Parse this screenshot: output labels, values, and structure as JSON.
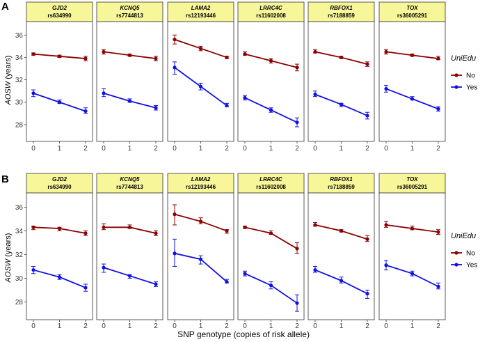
{
  "chart_data": {
    "type": "line",
    "xlabel": "SNP genotype (copies of risk allele)",
    "x": [
      0,
      1,
      2
    ],
    "x_ticks": [
      "0",
      "1",
      "2"
    ],
    "y_ticks": [
      "28",
      "30",
      "32",
      "34",
      "36"
    ],
    "legend": {
      "title": "UniEdu",
      "entries": [
        {
          "name": "No",
          "color": "#8b0000"
        },
        {
          "name": "Yes",
          "color": "#1010e6"
        }
      ]
    },
    "panels": [
      {
        "letter": "A",
        "ylabel_italic": "AOSW",
        "ylabel_rest": " (years)",
        "ylim": [
          26.5,
          37.2
        ],
        "facets": [
          {
            "gene": "GJD2",
            "snp": "rs634990",
            "no": {
              "values": [
                34.3,
                34.1,
                33.9
              ],
              "lo": [
                34.2,
                34.0,
                33.7
              ],
              "hi": [
                34.4,
                34.2,
                34.1
              ]
            },
            "yes": {
              "values": [
                30.8,
                30.0,
                29.2
              ],
              "lo": [
                30.5,
                29.9,
                29.0
              ],
              "hi": [
                31.1,
                30.2,
                29.5
              ]
            }
          },
          {
            "gene": "KCNQ5",
            "snp": "rs7744813",
            "no": {
              "values": [
                34.5,
                34.2,
                33.9
              ],
              "lo": [
                34.3,
                34.1,
                33.7
              ],
              "hi": [
                34.7,
                34.3,
                34.1
              ]
            },
            "yes": {
              "values": [
                30.8,
                30.1,
                29.5
              ],
              "lo": [
                30.5,
                30.0,
                29.3
              ],
              "hi": [
                31.2,
                30.3,
                29.7
              ]
            }
          },
          {
            "gene": "LAMA2",
            "snp": "rs12193446",
            "no": {
              "values": [
                35.6,
                34.8,
                34.0
              ],
              "lo": [
                35.2,
                34.6,
                33.9
              ],
              "hi": [
                36.0,
                35.0,
                34.1
              ]
            },
            "yes": {
              "values": [
                33.1,
                31.4,
                29.7
              ],
              "lo": [
                32.5,
                31.1,
                29.6
              ],
              "hi": [
                33.6,
                31.7,
                29.9
              ]
            }
          },
          {
            "gene": "LRRC4C",
            "snp": "rs11602008",
            "no": {
              "values": [
                34.3,
                33.7,
                33.1
              ],
              "lo": [
                34.2,
                33.5,
                32.8
              ],
              "hi": [
                34.5,
                33.9,
                33.4
              ]
            },
            "yes": {
              "values": [
                30.4,
                29.3,
                28.2
              ],
              "lo": [
                30.2,
                29.1,
                27.8
              ],
              "hi": [
                30.6,
                29.5,
                28.6
              ]
            }
          },
          {
            "gene": "RBFOX1",
            "snp": "rs7188859",
            "no": {
              "values": [
                34.5,
                34.0,
                33.4
              ],
              "lo": [
                34.4,
                33.9,
                33.2
              ],
              "hi": [
                34.7,
                34.1,
                33.6
              ]
            },
            "yes": {
              "values": [
                30.7,
                29.8,
                28.8
              ],
              "lo": [
                30.5,
                29.6,
                28.5
              ],
              "hi": [
                31.0,
                29.9,
                29.1
              ]
            }
          },
          {
            "gene": "TOX",
            "snp": "rs36005291",
            "no": {
              "values": [
                34.5,
                34.2,
                33.9
              ],
              "lo": [
                34.3,
                34.1,
                33.8
              ],
              "hi": [
                34.7,
                34.3,
                34.1
              ]
            },
            "yes": {
              "values": [
                31.2,
                30.3,
                29.4
              ],
              "lo": [
                30.9,
                30.2,
                29.2
              ],
              "hi": [
                31.5,
                30.5,
                29.6
              ]
            }
          }
        ]
      },
      {
        "letter": "B",
        "ylabel_italic": "AOSW",
        "ylabel_rest": " (years)",
        "ylim": [
          26.5,
          37.2
        ],
        "facets": [
          {
            "gene": "GJD2",
            "snp": "rs634990",
            "no": {
              "values": [
                34.3,
                34.2,
                33.8
              ],
              "lo": [
                34.1,
                34.0,
                33.6
              ],
              "hi": [
                34.4,
                34.3,
                34.0
              ]
            },
            "yes": {
              "values": [
                30.7,
                30.1,
                29.2
              ],
              "lo": [
                30.4,
                29.9,
                28.9
              ],
              "hi": [
                31.0,
                30.3,
                29.5
              ]
            }
          },
          {
            "gene": "KCNQ5",
            "snp": "rs7744813",
            "no": {
              "values": [
                34.3,
                34.3,
                33.8
              ],
              "lo": [
                34.1,
                34.2,
                33.6
              ],
              "hi": [
                34.6,
                34.5,
                34.0
              ]
            },
            "yes": {
              "values": [
                30.9,
                30.2,
                29.5
              ],
              "lo": [
                30.5,
                30.0,
                29.3
              ],
              "hi": [
                31.2,
                30.3,
                29.7
              ]
            }
          },
          {
            "gene": "LAMA2",
            "snp": "rs12193446",
            "no": {
              "values": [
                35.4,
                34.8,
                34.0
              ],
              "lo": [
                34.5,
                34.6,
                33.8
              ],
              "hi": [
                36.2,
                35.1,
                34.1
              ]
            },
            "yes": {
              "values": [
                32.1,
                31.6,
                29.7
              ],
              "lo": [
                31.0,
                31.2,
                29.6
              ],
              "hi": [
                33.3,
                31.9,
                29.9
              ]
            }
          },
          {
            "gene": "LRRC4C",
            "snp": "rs11602008",
            "no": {
              "values": [
                34.3,
                33.8,
                32.5
              ],
              "lo": [
                34.2,
                33.7,
                32.1
              ],
              "hi": [
                34.4,
                34.0,
                33.0
              ]
            },
            "yes": {
              "values": [
                30.4,
                29.4,
                27.9
              ],
              "lo": [
                30.2,
                29.1,
                27.2
              ],
              "hi": [
                30.6,
                29.7,
                28.6
              ]
            }
          },
          {
            "gene": "RBFOX1",
            "snp": "rs7188859",
            "no": {
              "values": [
                34.5,
                34.0,
                33.3
              ],
              "lo": [
                34.4,
                33.9,
                33.1
              ],
              "hi": [
                34.7,
                34.1,
                33.6
              ]
            },
            "yes": {
              "values": [
                30.7,
                29.8,
                28.7
              ],
              "lo": [
                30.5,
                29.6,
                28.3
              ],
              "hi": [
                31.0,
                30.1,
                29.0
              ]
            }
          },
          {
            "gene": "TOX",
            "snp": "rs36005291",
            "no": {
              "values": [
                34.5,
                34.2,
                33.9
              ],
              "lo": [
                34.3,
                34.1,
                33.7
              ],
              "hi": [
                34.8,
                34.4,
                34.1
              ]
            },
            "yes": {
              "values": [
                31.1,
                30.4,
                29.3
              ],
              "lo": [
                30.7,
                30.2,
                29.1
              ],
              "hi": [
                31.5,
                30.6,
                29.6
              ]
            }
          }
        ]
      }
    ]
  }
}
